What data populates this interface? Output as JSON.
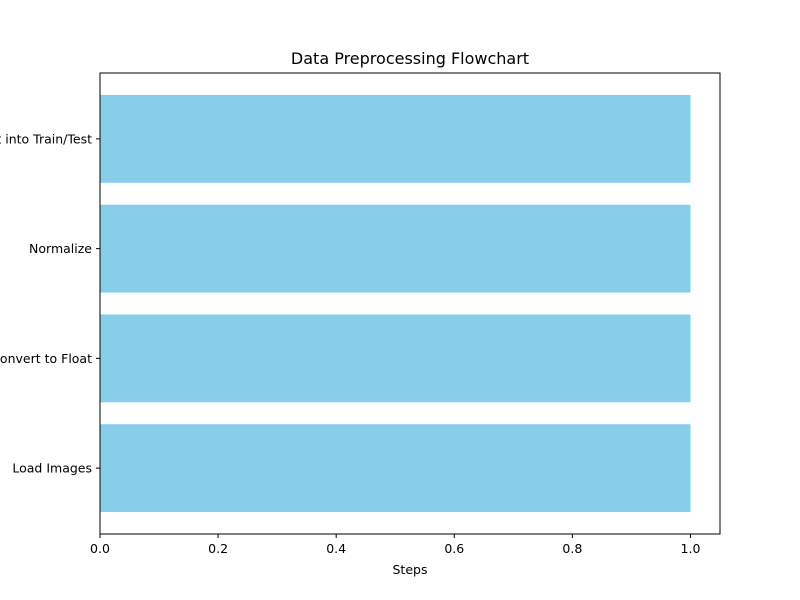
{
  "chart_data": {
    "type": "bar",
    "orientation": "horizontal",
    "title": "Data Preprocessing Flowchart",
    "xlabel": "Steps",
    "ylabel": "",
    "categories": [
      "Load Images",
      "Convert to Float",
      "Normalize",
      "Split into Train/Test"
    ],
    "values": [
      1,
      1,
      1,
      1
    ],
    "xlim": [
      0,
      1.05
    ],
    "xticks": [
      0.0,
      0.2,
      0.4,
      0.6,
      0.8,
      1.0
    ],
    "xtick_labels": [
      "0.0",
      "0.2",
      "0.4",
      "0.6",
      "0.8",
      "1.0"
    ],
    "grid": false,
    "legend": "none",
    "bar_color": "#87CEEB"
  }
}
